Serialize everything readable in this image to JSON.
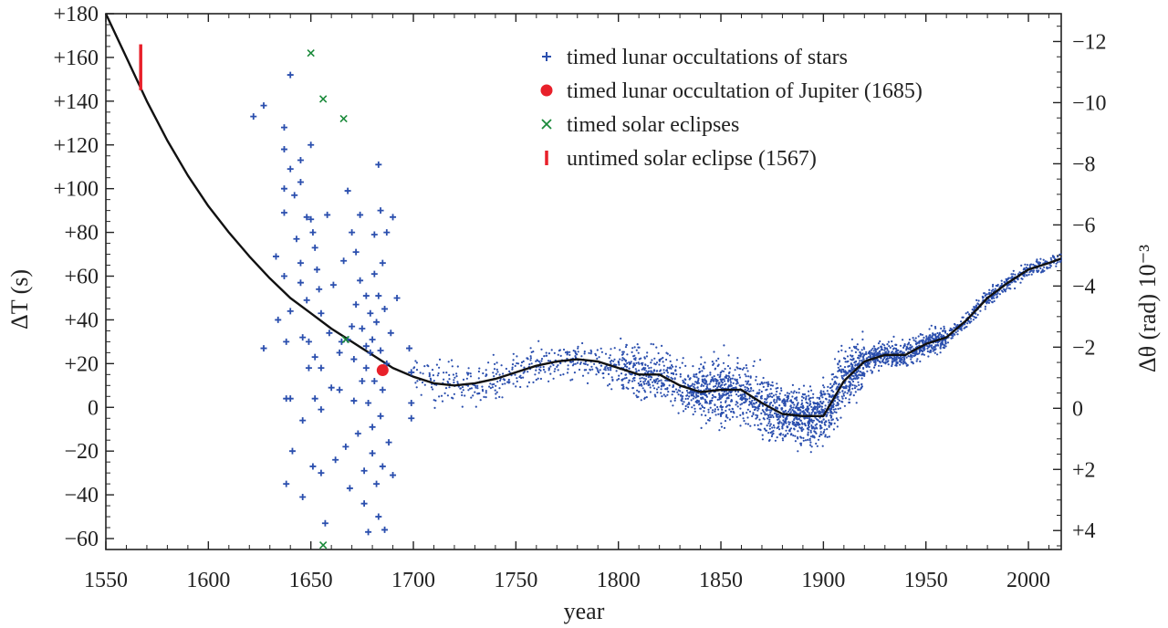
{
  "chart_data": {
    "type": "scatter",
    "xlabel": "year",
    "ylabel": "ΔT (s)",
    "y2label": "Δθ (rad) 10⁻³",
    "xlim": [
      1550,
      2016
    ],
    "ylim": [
      -65,
      180
    ],
    "y2lim": [
      4.62,
      -12.91
    ],
    "grid": false,
    "legend_position": "top-right",
    "x_ticks": [
      1550,
      1600,
      1650,
      1700,
      1750,
      1800,
      1850,
      1900,
      1950,
      2000
    ],
    "y_ticks": [
      {
        "value": 180,
        "label": "+180"
      },
      {
        "value": 160,
        "label": "+160"
      },
      {
        "value": 140,
        "label": "+140"
      },
      {
        "value": 120,
        "label": "+120"
      },
      {
        "value": 100,
        "label": "+100"
      },
      {
        "value": 80,
        "label": "+80"
      },
      {
        "value": 60,
        "label": "+60"
      },
      {
        "value": 40,
        "label": "+40"
      },
      {
        "value": 20,
        "label": "+20"
      },
      {
        "value": 0,
        "label": "0"
      },
      {
        "value": -20,
        "label": "−20"
      },
      {
        "value": -40,
        "label": "−40"
      },
      {
        "value": -60,
        "label": "−60"
      }
    ],
    "y2_ticks": [
      {
        "value": -12,
        "label": "−12"
      },
      {
        "value": -10,
        "label": "−10"
      },
      {
        "value": -8,
        "label": "−8"
      },
      {
        "value": -6,
        "label": "−6"
      },
      {
        "value": -4,
        "label": "−4"
      },
      {
        "value": -2,
        "label": "−2"
      },
      {
        "value": 0,
        "label": "0"
      },
      {
        "value": 2,
        "label": "+2"
      },
      {
        "value": 4,
        "label": "+4"
      }
    ],
    "colors": {
      "occultations": "#2b4fae",
      "jupiter": "#e8202a",
      "solar": "#1a8a3a",
      "untimed": "#e8202a",
      "curve": "#111111"
    },
    "legend": [
      {
        "key": "occultations",
        "label": "timed lunar occultations of stars",
        "marker": "plus"
      },
      {
        "key": "jupiter",
        "label": "timed lunar occultation of Jupiter (1685)",
        "marker": "dot"
      },
      {
        "key": "solar",
        "label": "timed solar eclipses",
        "marker": "cross"
      },
      {
        "key": "untimed",
        "label": "untimed solar eclipse (1567)",
        "marker": "bar"
      }
    ],
    "curve": {
      "x": [
        1550,
        1560,
        1570,
        1580,
        1590,
        1600,
        1610,
        1620,
        1630,
        1640,
        1650,
        1660,
        1670,
        1680,
        1690,
        1700,
        1710,
        1720,
        1730,
        1740,
        1750,
        1760,
        1770,
        1780,
        1790,
        1800,
        1810,
        1820,
        1830,
        1840,
        1850,
        1860,
        1870,
        1880,
        1890,
        1900,
        1910,
        1920,
        1930,
        1940,
        1950,
        1960,
        1970,
        1980,
        1990,
        2000,
        2010,
        2016
      ],
      "y": [
        180,
        160,
        140,
        122,
        106,
        92,
        80,
        69,
        59,
        50,
        43,
        36,
        30,
        24,
        18,
        14,
        11,
        10,
        11,
        13,
        16,
        19,
        21,
        22,
        21,
        18,
        15,
        15,
        10,
        7,
        8,
        8,
        2,
        -3,
        -4,
        -4,
        12,
        21,
        24,
        24,
        29,
        32,
        40,
        50,
        57,
        63,
        66,
        68
      ]
    },
    "star_occultations": [
      {
        "x": 1622,
        "y": 133
      },
      {
        "x": 1627,
        "y": 138
      },
      {
        "x": 1627,
        "y": 27
      },
      {
        "x": 1633,
        "y": 69
      },
      {
        "x": 1634,
        "y": 40
      },
      {
        "x": 1637,
        "y": 128
      },
      {
        "x": 1637,
        "y": 118
      },
      {
        "x": 1637,
        "y": 100
      },
      {
        "x": 1637,
        "y": 89
      },
      {
        "x": 1637,
        "y": 60
      },
      {
        "x": 1638,
        "y": 30
      },
      {
        "x": 1638,
        "y": 4
      },
      {
        "x": 1638,
        "y": -35
      },
      {
        "x": 1640,
        "y": 152
      },
      {
        "x": 1640,
        "y": 109
      },
      {
        "x": 1640,
        "y": 44
      },
      {
        "x": 1640,
        "y": 4
      },
      {
        "x": 1641,
        "y": -20
      },
      {
        "x": 1642,
        "y": 97
      },
      {
        "x": 1643,
        "y": 77
      },
      {
        "x": 1645,
        "y": 113
      },
      {
        "x": 1645,
        "y": 103
      },
      {
        "x": 1645,
        "y": 66
      },
      {
        "x": 1645,
        "y": 57
      },
      {
        "x": 1646,
        "y": 32
      },
      {
        "x": 1646,
        "y": -6
      },
      {
        "x": 1646,
        "y": -41
      },
      {
        "x": 1648,
        "y": 49
      },
      {
        "x": 1648,
        "y": 87
      },
      {
        "x": 1649,
        "y": 30
      },
      {
        "x": 1649,
        "y": 18
      },
      {
        "x": 1650,
        "y": 120
      },
      {
        "x": 1650,
        "y": 86
      },
      {
        "x": 1651,
        "y": 80
      },
      {
        "x": 1651,
        "y": -27
      },
      {
        "x": 1652,
        "y": 73
      },
      {
        "x": 1652,
        "y": 4
      },
      {
        "x": 1652,
        "y": 23
      },
      {
        "x": 1653,
        "y": 63
      },
      {
        "x": 1654,
        "y": 54
      },
      {
        "x": 1655,
        "y": 43
      },
      {
        "x": 1655,
        "y": 18
      },
      {
        "x": 1655,
        "y": -1
      },
      {
        "x": 1655,
        "y": -30
      },
      {
        "x": 1657,
        "y": -53
      },
      {
        "x": 1658,
        "y": 88
      },
      {
        "x": 1659,
        "y": 34
      },
      {
        "x": 1660,
        "y": 9
      },
      {
        "x": 1661,
        "y": 56
      },
      {
        "x": 1662,
        "y": -24
      },
      {
        "x": 1664,
        "y": 25
      },
      {
        "x": 1664,
        "y": 8
      },
      {
        "x": 1665,
        "y": 30
      },
      {
        "x": 1666,
        "y": 67
      },
      {
        "x": 1667,
        "y": -18
      },
      {
        "x": 1668,
        "y": 99
      },
      {
        "x": 1668,
        "y": 31
      },
      {
        "x": 1669,
        "y": -37
      },
      {
        "x": 1670,
        "y": 80
      },
      {
        "x": 1670,
        "y": 37
      },
      {
        "x": 1671,
        "y": 22
      },
      {
        "x": 1671,
        "y": 3
      },
      {
        "x": 1672,
        "y": 71
      },
      {
        "x": 1672,
        "y": 47
      },
      {
        "x": 1673,
        "y": -12
      },
      {
        "x": 1674,
        "y": 88
      },
      {
        "x": 1674,
        "y": 58
      },
      {
        "x": 1675,
        "y": 36
      },
      {
        "x": 1675,
        "y": 12
      },
      {
        "x": 1676,
        "y": -29
      },
      {
        "x": 1676,
        "y": -44
      },
      {
        "x": 1677,
        "y": 51
      },
      {
        "x": 1677,
        "y": 28
      },
      {
        "x": 1677,
        "y": 18
      },
      {
        "x": 1678,
        "y": 2
      },
      {
        "x": 1678,
        "y": -57
      },
      {
        "x": 1679,
        "y": 43
      },
      {
        "x": 1679,
        "y": 25
      },
      {
        "x": 1680,
        "y": 31
      },
      {
        "x": 1680,
        "y": -9
      },
      {
        "x": 1680,
        "y": -21
      },
      {
        "x": 1681,
        "y": 79
      },
      {
        "x": 1681,
        "y": 61
      },
      {
        "x": 1681,
        "y": 12
      },
      {
        "x": 1682,
        "y": 39
      },
      {
        "x": 1682,
        "y": -35
      },
      {
        "x": 1683,
        "y": 111
      },
      {
        "x": 1683,
        "y": 51
      },
      {
        "x": 1683,
        "y": -50
      },
      {
        "x": 1684,
        "y": 90
      },
      {
        "x": 1684,
        "y": 26
      },
      {
        "x": 1684,
        "y": -4
      },
      {
        "x": 1685,
        "y": 66
      },
      {
        "x": 1685,
        "y": 8
      },
      {
        "x": 1685,
        "y": -27
      },
      {
        "x": 1686,
        "y": 45
      },
      {
        "x": 1686,
        "y": -56
      },
      {
        "x": 1687,
        "y": 80
      },
      {
        "x": 1687,
        "y": 20
      },
      {
        "x": 1688,
        "y": -16
      },
      {
        "x": 1689,
        "y": 34
      },
      {
        "x": 1690,
        "y": 87
      },
      {
        "x": 1690,
        "y": -31
      },
      {
        "x": 1692,
        "y": 50
      },
      {
        "x": 1698,
        "y": 27
      },
      {
        "x": 1699,
        "y": 16
      },
      {
        "x": 1699,
        "y": 2
      },
      {
        "x": 1699,
        "y": -5
      }
    ],
    "solar_eclipses": [
      {
        "x": 1650,
        "y": 162
      },
      {
        "x": 1656,
        "y": 141
      },
      {
        "x": 1666,
        "y": 132
      },
      {
        "x": 1656,
        "y": -63
      },
      {
        "x": 1667,
        "y": 31
      }
    ],
    "jupiter_occultation": {
      "x": 1685,
      "y": 17
    },
    "untimed_eclipse": {
      "x": 1567,
      "y_low": 145,
      "y_high": 166
    },
    "dense_series": {
      "description_free": true,
      "ranges": [
        {
          "x0": 1700,
          "x1": 1740,
          "count": 140,
          "spread": 7
        },
        {
          "x0": 1740,
          "x1": 1800,
          "count": 260,
          "spread": 6
        },
        {
          "x0": 1800,
          "x1": 1840,
          "count": 420,
          "spread": 8
        },
        {
          "x0": 1840,
          "x1": 1880,
          "count": 620,
          "spread": 10
        },
        {
          "x0": 1880,
          "x1": 1920,
          "count": 820,
          "spread": 9
        },
        {
          "x0": 1920,
          "x1": 1960,
          "count": 560,
          "spread": 4
        },
        {
          "x0": 1960,
          "x1": 2016,
          "count": 360,
          "spread": 2.5
        }
      ]
    }
  }
}
